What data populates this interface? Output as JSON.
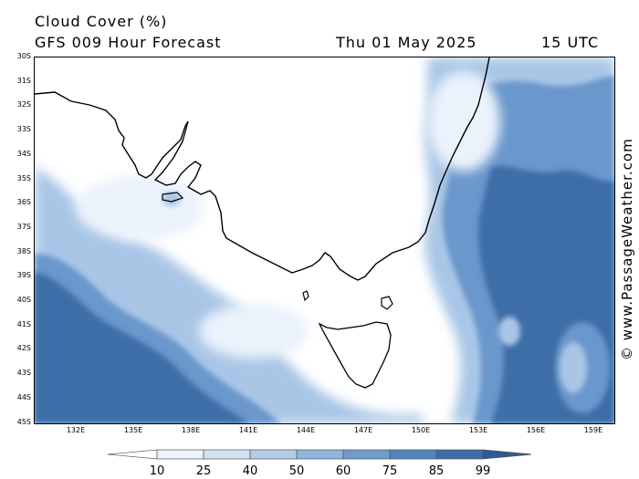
{
  "header": {
    "title": "Cloud Cover (%)",
    "subtitle": "GFS 009 Hour Forecast",
    "date": "Thu 01 May 2025",
    "time": "15 UTC"
  },
  "watermark": "© www.PassageWeather.com",
  "lat_labels": [
    "30S",
    "31S",
    "32S",
    "33S",
    "34S",
    "35S",
    "36S",
    "37S",
    "38S",
    "39S",
    "40S",
    "41S",
    "42S",
    "43S",
    "44S",
    "45S"
  ],
  "lon_labels": [
    "132E",
    "135E",
    "138E",
    "141E",
    "144E",
    "147E",
    "150E",
    "153E",
    "156E",
    "159E"
  ],
  "colorbar": {
    "labels": [
      "10",
      "25",
      "40",
      "50",
      "60",
      "75",
      "85",
      "99"
    ],
    "colors": [
      "#ffffff",
      "#ecf3fb",
      "#d2e2f2",
      "#b3cde7",
      "#90b5db",
      "#6f9bcd",
      "#5385bf",
      "#3d6ea9",
      "#2d5a96"
    ]
  },
  "map": {
    "fill_colors": {
      "clear": "#ffffff",
      "light": "#eaf2fb",
      "mid": "#a9c6e6",
      "high": "#6b97cc",
      "overcast": "#3e6ea8"
    },
    "coastline_color": "#000000"
  }
}
